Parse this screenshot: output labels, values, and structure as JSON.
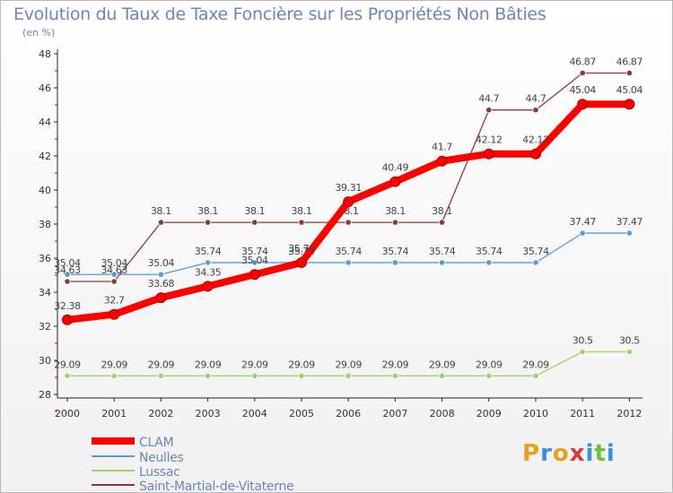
{
  "title": "Evolution du Taux de Taxe Foncière sur les Propriétés Non Bâties",
  "unit_label": "(en %)",
  "logo": {
    "letters": [
      "P",
      "r",
      "o",
      "x",
      "i",
      "t",
      "i"
    ],
    "colors": [
      "#e8a020",
      "#3d8fd6",
      "#e8a020",
      "#d63a3a",
      "#3d8fd6",
      "#6bbf3a",
      "#3d8fd6"
    ]
  },
  "chart_data": {
    "type": "line",
    "title": "Evolution du Taux de Taxe Foncière sur les Propriétés Non Bâties",
    "ylabel": "(en %)",
    "xlabel": "",
    "x": [
      "2000",
      "2001",
      "2002",
      "2003",
      "2004",
      "2005",
      "2006",
      "2007",
      "2008",
      "2009",
      "2010",
      "2011",
      "2012"
    ],
    "ylim": [
      28,
      48
    ],
    "yticks": [
      28,
      30,
      32,
      34,
      36,
      38,
      40,
      42,
      44,
      46,
      48
    ],
    "grid": false,
    "legend_position": "bottom-left",
    "series": [
      {
        "name": "CLAM",
        "color": "#ff0000",
        "values": [
          32.38,
          32.7,
          33.68,
          34.35,
          35.04,
          35.74,
          39.31,
          40.49,
          41.7,
          42.12,
          42.12,
          45.04,
          45.04
        ],
        "labels": [
          "32.38",
          "32.7",
          "33.68",
          "34.35",
          "35.04",
          "35.74",
          "39.31",
          "40.49",
          "41.7",
          "42.12",
          "42.12",
          "45.04",
          "45.04"
        ]
      },
      {
        "name": "Neulles",
        "color": "#5b9bd5",
        "values": [
          35.04,
          35.04,
          35.04,
          35.74,
          35.74,
          35.74,
          35.74,
          35.74,
          35.74,
          35.74,
          35.74,
          37.47,
          37.47
        ],
        "labels": [
          "35.04",
          "35.04",
          "35.04",
          "35.74",
          "35.74",
          "35.74",
          "35.74",
          "35.74",
          "35.74",
          "35.74",
          "35.74",
          "37.47",
          "37.47"
        ]
      },
      {
        "name": "Lussac",
        "color": "#9ad46b",
        "values": [
          29.09,
          29.09,
          29.09,
          29.09,
          29.09,
          29.09,
          29.09,
          29.09,
          29.09,
          29.09,
          29.09,
          30.5,
          30.5
        ],
        "labels": [
          "29.09",
          "29.09",
          "29.09",
          "29.09",
          "29.09",
          "29.09",
          "29.09",
          "29.09",
          "29.09",
          "29.09",
          "29.09",
          "30.5",
          "30.5"
        ]
      },
      {
        "name": "Saint-Martial-de-Vitaterne",
        "color": "#8b3a3a",
        "values": [
          34.63,
          34.63,
          38.1,
          38.1,
          38.1,
          38.1,
          38.1,
          38.1,
          38.1,
          44.7,
          44.7,
          46.87,
          46.87
        ],
        "labels": [
          "34.63",
          "34.63",
          "38.1",
          "38.1",
          "38.1",
          "38.1",
          "38.1",
          "38.1",
          "38.1",
          "44.7",
          "44.7",
          "46.87",
          "46.87"
        ]
      }
    ]
  }
}
